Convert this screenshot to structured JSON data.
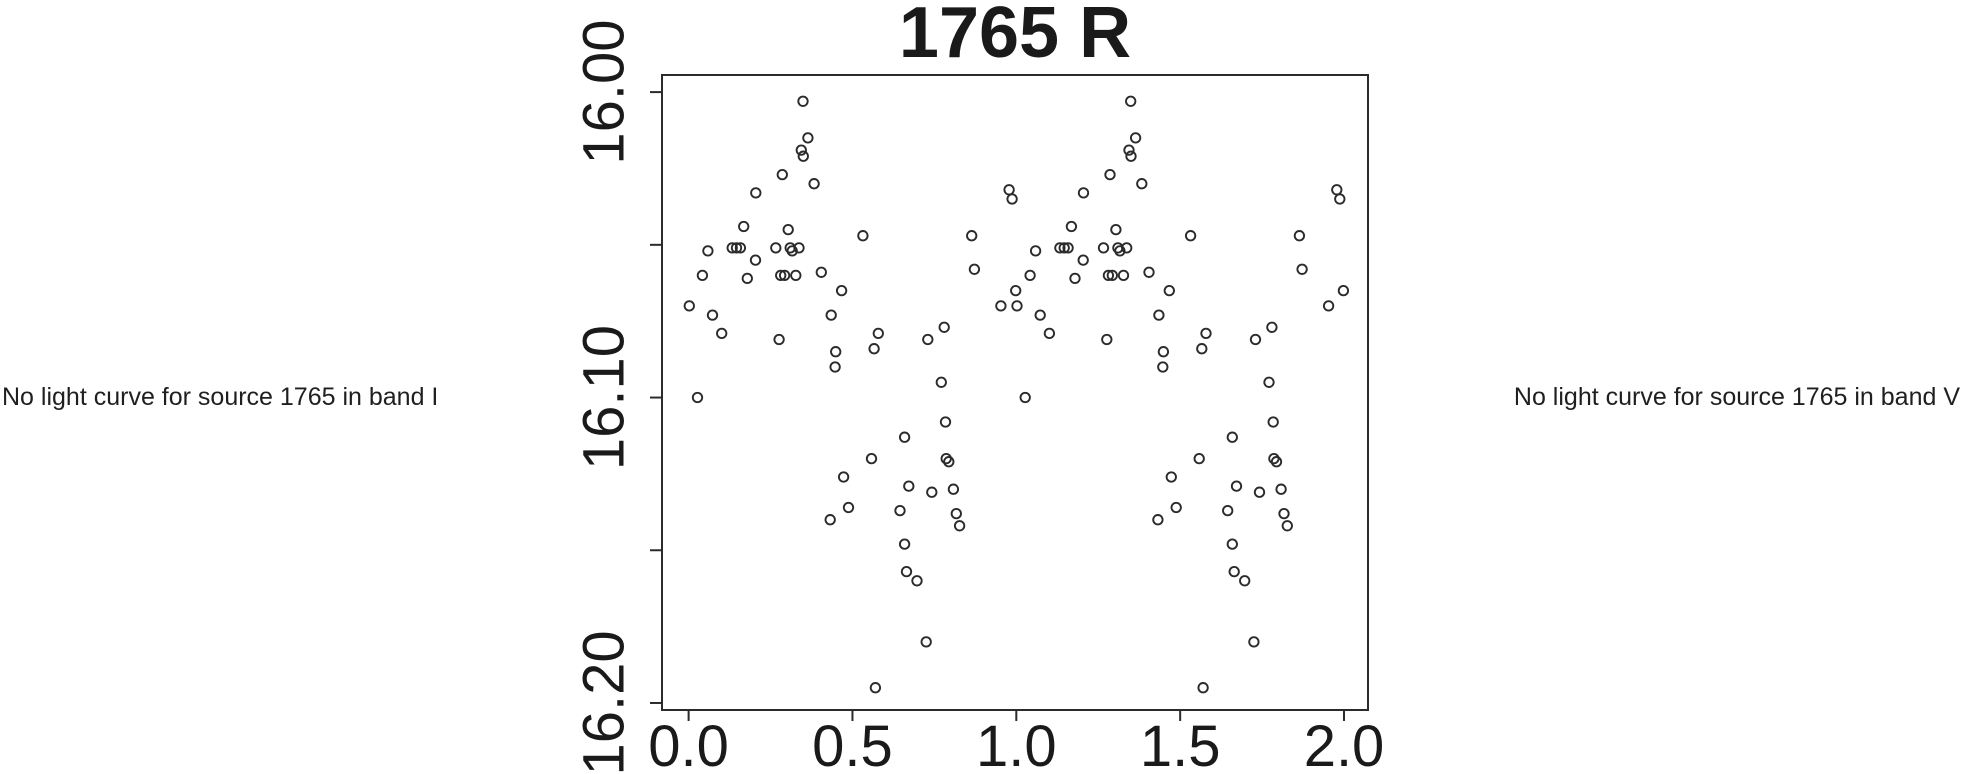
{
  "page": {
    "background": "#ffffff"
  },
  "messages": {
    "band_i": "No light curve for source 1765 in band I",
    "band_v": "No light curve for source 1765 in band V"
  },
  "style": {
    "stroke_color": "#2b2b2b",
    "text_color": "#1a1a1a",
    "marker_radius": 4.7,
    "marker_stroke_width": 1.9,
    "box_stroke_width": 2
  },
  "chart_data": {
    "type": "scatter",
    "title": "1765 R",
    "marker": "open-circle",
    "grid": false,
    "legend": "none",
    "xlabel": "",
    "ylabel": "",
    "x_axis": {
      "ticks": [
        0.0,
        0.5,
        1.0,
        1.5,
        2.0
      ],
      "tick_labels": [
        "0.0",
        "0.5",
        "1.0",
        "1.5",
        "2.0"
      ],
      "min": -0.0812,
      "max": 2.0732
    },
    "y_axis": {
      "ticks": [
        16.0,
        16.05,
        16.1,
        16.15,
        16.2
      ],
      "labeled_ticks": [
        {
          "value": 16.0,
          "text": "16.00"
        },
        {
          "value": 16.1,
          "text": "16.10"
        },
        {
          "value": 16.2,
          "text": "16.20"
        }
      ],
      "top_value": 15.9944,
      "bottom_value": 16.2023,
      "inverted": true
    },
    "phase_doubled": true,
    "points": [
      [
        0.002,
        16.07
      ],
      [
        0.027,
        16.1
      ],
      [
        0.042,
        16.06
      ],
      [
        0.059,
        16.052
      ],
      [
        0.073,
        16.073
      ],
      [
        0.101,
        16.079
      ],
      [
        0.133,
        16.051
      ],
      [
        0.146,
        16.051
      ],
      [
        0.158,
        16.051
      ],
      [
        0.168,
        16.044
      ],
      [
        0.179,
        16.061
      ],
      [
        0.204,
        16.055
      ],
      [
        0.205,
        16.033
      ],
      [
        0.266,
        16.051
      ],
      [
        0.276,
        16.081
      ],
      [
        0.281,
        16.06
      ],
      [
        0.286,
        16.027
      ],
      [
        0.293,
        16.06
      ],
      [
        0.304,
        16.045
      ],
      [
        0.31,
        16.051
      ],
      [
        0.316,
        16.052
      ],
      [
        0.327,
        16.06
      ],
      [
        0.337,
        16.051
      ],
      [
        0.344,
        16.019
      ],
      [
        0.349,
        16.003
      ],
      [
        0.35,
        16.021
      ],
      [
        0.364,
        16.015
      ],
      [
        0.383,
        16.03
      ],
      [
        0.405,
        16.059
      ],
      [
        0.432,
        16.14
      ],
      [
        0.435,
        16.073
      ],
      [
        0.447,
        16.09
      ],
      [
        0.449,
        16.085
      ],
      [
        0.467,
        16.065
      ],
      [
        0.473,
        16.126
      ],
      [
        0.488,
        16.136
      ],
      [
        0.532,
        16.047
      ],
      [
        0.558,
        16.12
      ],
      [
        0.566,
        16.084
      ],
      [
        0.57,
        16.195
      ],
      [
        0.579,
        16.079
      ],
      [
        0.645,
        16.137
      ],
      [
        0.659,
        16.113
      ],
      [
        0.659,
        16.148
      ],
      [
        0.665,
        16.157
      ],
      [
        0.672,
        16.129
      ],
      [
        0.697,
        16.16
      ],
      [
        0.725,
        16.18
      ],
      [
        0.73,
        16.081
      ],
      [
        0.742,
        16.131
      ],
      [
        0.771,
        16.095
      ],
      [
        0.78,
        16.077
      ],
      [
        0.784,
        16.108
      ],
      [
        0.786,
        16.12
      ],
      [
        0.794,
        16.121
      ],
      [
        0.808,
        16.13
      ],
      [
        0.817,
        16.138
      ],
      [
        0.827,
        16.142
      ],
      [
        0.864,
        16.047
      ],
      [
        0.872,
        16.058
      ],
      [
        0.953,
        16.07
      ],
      [
        0.978,
        16.032
      ],
      [
        0.987,
        16.035
      ],
      [
        0.998,
        16.065
      ]
    ]
  }
}
